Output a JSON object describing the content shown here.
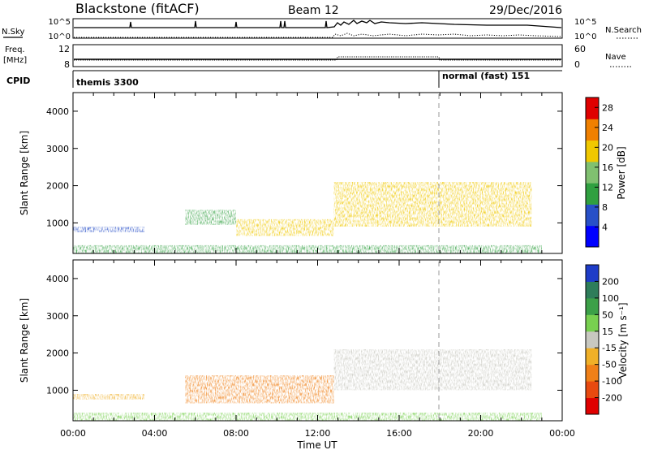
{
  "header": {
    "station": "Blackstone (fitACF)",
    "beam": "Beam 12",
    "date": "29/Dec/2016"
  },
  "top_panels": {
    "nsky_label": "N.Sky",
    "nsearch_label": "N.Search",
    "count_ticks_left": [
      "10^5",
      "10^0"
    ],
    "count_ticks_right": [
      "10^5",
      "10^0"
    ],
    "freq_label_1": "Freq.",
    "freq_label_2": "[MHz]",
    "freq_ticks": [
      "12",
      "8"
    ],
    "nave_label": "Nave",
    "nave_ticks": [
      "60",
      "0"
    ],
    "cpid_label": "CPID",
    "cpid_segments": [
      {
        "label": "themis 3300",
        "start": "00:00",
        "end": "18:00"
      },
      {
        "label": "normal (fast) 151",
        "start": "18:00",
        "end": "24:00"
      }
    ]
  },
  "chart_data": [
    {
      "type": "heatmap",
      "title": "",
      "xlabel": "",
      "ylabel": "Slant Range [km]",
      "x_ticks": [
        "00:00",
        "04:00",
        "08:00",
        "12:00",
        "16:00",
        "20:00",
        "00:00"
      ],
      "x_range_hours": [
        0,
        24
      ],
      "y_ticks": [
        1000,
        2000,
        3000,
        4000
      ],
      "ylim": [
        180,
        4500
      ],
      "colorbar": {
        "label": "Power [dB]",
        "ticks": [
          4,
          8,
          12,
          16,
          20,
          24,
          28
        ],
        "range": [
          0,
          30
        ],
        "colors": [
          "#0000ff",
          "#2850c8",
          "#30a040",
          "#80c070",
          "#f0c800",
          "#f08000",
          "#e00000"
        ]
      },
      "features": [
        {
          "description": "near-range echoes",
          "hours": [
            0,
            23
          ],
          "range_km": [
            180,
            400
          ],
          "power_db": 10
        },
        {
          "description": "echo band",
          "hours": [
            0,
            3.5
          ],
          "range_km": [
            750,
            900
          ],
          "power_db": 8
        },
        {
          "description": "echo band",
          "hours": [
            5.5,
            8
          ],
          "range_km": [
            950,
            1350
          ],
          "power_db": 12
        },
        {
          "description": "echo band",
          "hours": [
            8,
            12.8
          ],
          "range_km": [
            650,
            1100
          ],
          "power_db": 20
        },
        {
          "description": "echo band",
          "hours": [
            12.8,
            22.5
          ],
          "range_km": [
            900,
            2100
          ],
          "power_db": 20
        }
      ]
    },
    {
      "type": "heatmap",
      "title": "",
      "xlabel": "Time UT",
      "ylabel": "Slant Range [km]",
      "x_ticks": [
        "00:00",
        "04:00",
        "08:00",
        "12:00",
        "16:00",
        "20:00",
        "00:00"
      ],
      "x_range_hours": [
        0,
        24
      ],
      "y_ticks": [
        1000,
        2000,
        3000,
        4000
      ],
      "ylim": [
        180,
        4500
      ],
      "colorbar": {
        "label": "Velocity [m s⁻¹]",
        "ticks": [
          "200",
          "100",
          "50",
          "15",
          "-15",
          "-50",
          "-100",
          "-200"
        ],
        "colors": [
          "#1e3cc8",
          "#2e7d5a",
          "#3ca048",
          "#78d050",
          "#c8c8c0",
          "#f0b028",
          "#f08018",
          "#e84a10",
          "#e00000"
        ]
      },
      "features": [
        {
          "description": "near-range echoes",
          "hours": [
            0,
            23
          ],
          "range_km": [
            180,
            400
          ],
          "velocity": 30
        },
        {
          "description": "echo band",
          "hours": [
            0,
            3.5
          ],
          "range_km": [
            750,
            900
          ],
          "velocity": -30
        },
        {
          "description": "echo band",
          "hours": [
            5.5,
            12.8
          ],
          "range_km": [
            650,
            1400
          ],
          "velocity": -40
        },
        {
          "description": "echo band",
          "hours": [
            12.8,
            22.5
          ],
          "range_km": [
            1000,
            2100
          ],
          "velocity": 0
        }
      ]
    }
  ]
}
